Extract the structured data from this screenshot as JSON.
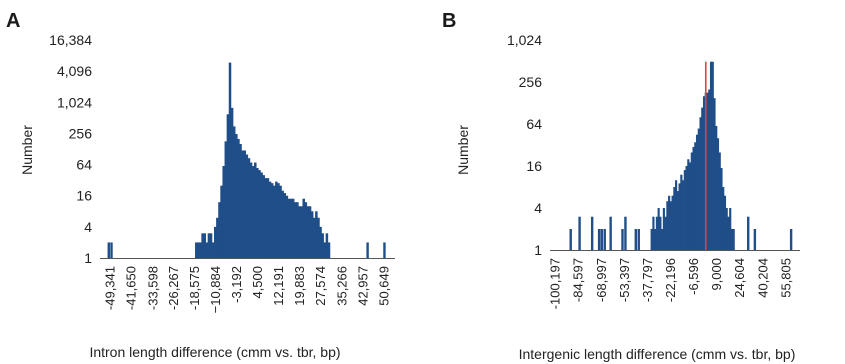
{
  "panels": [
    {
      "letter": "A"
    },
    {
      "letter": "B"
    }
  ],
  "chart_data": [
    {
      "type": "bar",
      "panel": "A",
      "title": "",
      "xlabel": "Intron length difference (cmm vs. tbr, bp)",
      "ylabel": "Number",
      "yscale": "log",
      "ylim": [
        1,
        16384
      ],
      "yticks": [
        1,
        4,
        16,
        64,
        256,
        1024,
        4096,
        16384
      ],
      "ytick_labels": [
        "1",
        "4",
        "16",
        "64",
        "256",
        "1,024",
        "4,096",
        "16,384"
      ],
      "xlim": [
        -53200,
        54500
      ],
      "xtick_values": [
        -49341,
        -41650,
        -33598,
        -26267,
        -18575,
        -10884,
        -3192,
        4500,
        12191,
        19883,
        27574,
        35266,
        42957,
        50649
      ],
      "xtick_labels": [
        "-49,341",
        "-41,650",
        "-33,598",
        "-26,267",
        "-18,575",
        "−10,884",
        "-3,192",
        "4,500",
        "12,191",
        "19,883",
        "27,574",
        "35,266",
        "42,957",
        "50,649"
      ],
      "bar_color": "#1f4e89",
      "bin_start": -18500,
      "bin_width": 769,
      "values": [
        2,
        2,
        2,
        3,
        3,
        2,
        3,
        3,
        2,
        4,
        6,
        12,
        25,
        60,
        180,
        600,
        6000,
        800,
        350,
        250,
        200,
        160,
        120,
        120,
        100,
        85,
        70,
        60,
        70,
        55,
        50,
        45,
        40,
        35,
        35,
        30,
        28,
        25,
        30,
        28,
        25,
        20,
        18,
        16,
        14,
        14,
        14,
        12,
        12,
        10,
        10,
        14,
        12,
        10,
        10,
        8,
        6,
        8,
        6,
        4,
        3,
        2,
        3,
        2
      ],
      "isolated_bars": [
        {
          "x": -50000,
          "value": 2
        },
        {
          "x": -49000,
          "value": 2
        },
        {
          "x": 44500,
          "value": 2
        },
        {
          "x": 50650,
          "value": 2
        }
      ]
    },
    {
      "type": "bar",
      "panel": "B",
      "title": "",
      "xlabel": "Intergenic length difference (cmm vs. tbr, bp)",
      "ylabel": "Number",
      "yscale": "log",
      "ylim": [
        1,
        1024
      ],
      "yticks": [
        1,
        4,
        16,
        64,
        256,
        1024
      ],
      "ytick_labels": [
        "1",
        "4",
        "16",
        "64",
        "256",
        "1,024"
      ],
      "xlim": [
        -104000,
        65000
      ],
      "xtick_values": [
        -100197,
        -84597,
        -68997,
        -53397,
        -37797,
        -22196,
        -6596,
        9000,
        24604,
        40204,
        55805
      ],
      "xtick_labels": [
        "-100,197",
        "-84,597",
        "-68,997",
        "-53,397",
        "-37,797",
        "-22,196",
        "-6,596",
        "9,000",
        "24,604",
        "40,204",
        "55,805"
      ],
      "bar_color": "#1f4e89",
      "highlight_color": "#d9453a",
      "highlight_x": 1300,
      "bin_start": -36000,
      "bin_width": 1180,
      "values": [
        2,
        3,
        2,
        3,
        4,
        3,
        2,
        4,
        3,
        5,
        6,
        5,
        6,
        8,
        10,
        7,
        9,
        12,
        10,
        14,
        16,
        20,
        18,
        25,
        30,
        35,
        45,
        55,
        80,
        110,
        160,
        180,
        180,
        200,
        500,
        500,
        150,
        60,
        40,
        25,
        15,
        8,
        6,
        4,
        3,
        4,
        2,
        2
      ],
      "isolated_bars": [
        {
          "x": -90000,
          "value": 2
        },
        {
          "x": -84000,
          "value": 3
        },
        {
          "x": -75500,
          "value": 3
        },
        {
          "x": -70800,
          "value": 2
        },
        {
          "x": -69000,
          "value": 2
        },
        {
          "x": -67000,
          "value": 2
        },
        {
          "x": -63000,
          "value": 3
        },
        {
          "x": -55000,
          "value": 2
        },
        {
          "x": -53000,
          "value": 3
        },
        {
          "x": -46000,
          "value": 2
        },
        {
          "x": -44000,
          "value": 2
        },
        {
          "x": 30000,
          "value": 3
        },
        {
          "x": 34500,
          "value": 2
        },
        {
          "x": 59000,
          "value": 2
        }
      ]
    }
  ]
}
